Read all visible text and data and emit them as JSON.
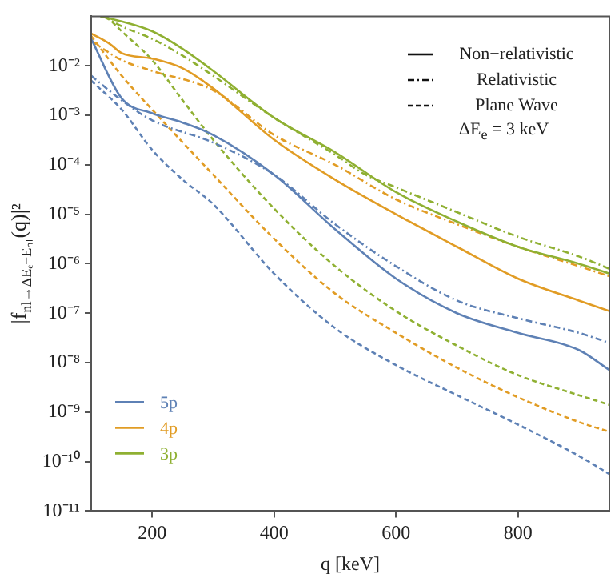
{
  "chart_data": {
    "type": "line",
    "xlabel": "q [keV]",
    "ylabel": "|f$_{nl→ΔEₑ−Eₙₗ}$(q)|²",
    "xlim": [
      100,
      950
    ],
    "xticks": [
      200,
      400,
      600,
      800
    ],
    "ylim": [
      1e-11,
      0.1
    ],
    "log": "y",
    "yticks": [
      {
        "value": 1e-11,
        "label": "10⁻¹¹"
      },
      {
        "value": 1e-10,
        "label": "10⁻¹⁰"
      },
      {
        "value": 1e-09,
        "label": "10⁻⁹"
      },
      {
        "value": 1e-08,
        "label": "10⁻⁸"
      },
      {
        "value": 1e-07,
        "label": "10⁻⁷"
      },
      {
        "value": 1e-06,
        "label": "10⁻⁶"
      },
      {
        "value": 1e-05,
        "label": "10⁻⁵"
      },
      {
        "value": 0.0001,
        "label": "10⁻⁴"
      },
      {
        "value": 0.001,
        "label": "10⁻³"
      },
      {
        "value": 0.01,
        "label": "10⁻²"
      }
    ],
    "grid": false,
    "legend": "bottom left",
    "marker": "none",
    "annotations": [
      "Non−relativistic",
      "Relativistic",
      "Plane Wave",
      "ΔE$_{e}$ = 3 keV"
    ],
    "series": [
      {
        "name": "5p",
        "color": "#5e81b5",
        "line_style": "solid",
        "x": [
          100,
          150,
          200,
          250,
          300,
          400,
          500,
          600,
          700,
          800,
          900,
          950
        ],
        "values": [
          0.035,
          0.0022,
          0.0011,
          0.00071,
          0.0004,
          6.3e-05,
          5e-06,
          5e-07,
          1e-07,
          4e-08,
          1.8e-08,
          7.1e-09
        ]
      },
      {
        "name": "4p",
        "color": "#e19c24",
        "line_style": "solid",
        "x": [
          100,
          130,
          150,
          200,
          250,
          300,
          400,
          500,
          600,
          700,
          800,
          900,
          950
        ],
        "values": [
          0.045,
          0.028,
          0.018,
          0.014,
          0.0089,
          0.0035,
          0.00032,
          5e-05,
          1e-05,
          2.2e-06,
          5e-07,
          1.8e-07,
          1.1e-07
        ]
      },
      {
        "name": "3p",
        "color": "#8fb032",
        "line_style": "solid",
        "x": [
          115,
          150,
          200,
          250,
          300,
          400,
          500,
          600,
          700,
          800,
          900,
          950
        ],
        "values": [
          0.1,
          0.079,
          0.05,
          0.022,
          0.0079,
          0.00089,
          0.00018,
          2.8e-05,
          7.1e-06,
          2.2e-06,
          1e-06,
          6.3e-07
        ]
      },
      {
        "color": "#5e81b5",
        "line_style": "dotted",
        "x": [
          100,
          150,
          200,
          300,
          400,
          500,
          600,
          700,
          800,
          900,
          950
        ],
        "values": [
          0.0063,
          0.002,
          0.00079,
          0.00028,
          6.3e-05,
          6.3e-06,
          8.9e-07,
          1.8e-07,
          7.9e-08,
          4e-08,
          2.5e-08
        ]
      },
      {
        "color": "#e19c24",
        "line_style": "dotted",
        "x": [
          100,
          150,
          200,
          300,
          400,
          500,
          600,
          700,
          800,
          900,
          950
        ],
        "values": [
          0.032,
          0.013,
          0.0079,
          0.0032,
          0.0004,
          0.0001,
          2e-05,
          6.3e-06,
          2.2e-06,
          8.9e-07,
          5.6e-07
        ]
      },
      {
        "color": "#8fb032",
        "line_style": "dotted",
        "x": [
          120,
          150,
          200,
          250,
          300,
          400,
          500,
          550,
          600,
          700,
          800,
          900,
          950
        ],
        "values": [
          0.1,
          0.063,
          0.035,
          0.016,
          0.0063,
          0.00089,
          0.00016,
          6.3e-05,
          3.5e-05,
          1.1e-05,
          3.5e-06,
          1.4e-06,
          7.9e-07
        ]
      },
      {
        "color": "#5e81b5",
        "line_style": "dashed",
        "x": [
          100,
          150,
          200,
          250,
          300,
          400,
          500,
          600,
          700,
          800,
          900,
          950
        ],
        "values": [
          0.005,
          0.0013,
          0.0002,
          5e-05,
          1.6e-05,
          6.3e-07,
          5e-08,
          8.9e-09,
          2.2e-09,
          5.6e-10,
          1.3e-10,
          5.6e-11
        ]
      },
      {
        "color": "#e19c24",
        "line_style": "dashed",
        "x": [
          100,
          150,
          200,
          300,
          400,
          500,
          600,
          700,
          800,
          900,
          950
        ],
        "values": [
          0.04,
          0.0063,
          0.0013,
          6.3e-05,
          3.2e-06,
          2.5e-07,
          4e-08,
          7.9e-09,
          2e-09,
          6.3e-10,
          4e-10
        ]
      },
      {
        "color": "#8fb032",
        "line_style": "dashed",
        "x": [
          125,
          150,
          200,
          250,
          300,
          400,
          500,
          600,
          700,
          800,
          900,
          950
        ],
        "values": [
          0.1,
          0.05,
          0.013,
          0.002,
          0.00032,
          1.3e-05,
          8.9e-07,
          1.1e-07,
          2.2e-08,
          5.6e-09,
          2.2e-09,
          1.4e-09
        ]
      }
    ]
  }
}
